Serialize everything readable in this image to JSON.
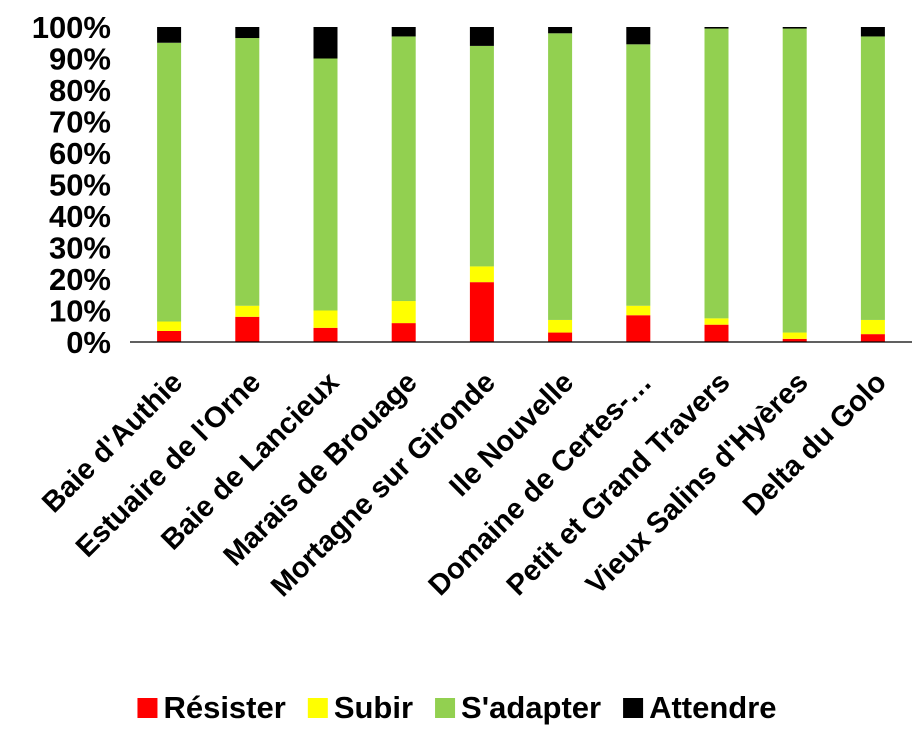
{
  "chart_data": {
    "type": "bar",
    "stacked": true,
    "percent_stacked": true,
    "title": "",
    "xlabel": "",
    "ylabel": "",
    "ylim": [
      0,
      100
    ],
    "yticks": [
      "0%",
      "10%",
      "20%",
      "30%",
      "40%",
      "50%",
      "60%",
      "70%",
      "80%",
      "90%",
      "100%"
    ],
    "grid": false,
    "legend_position": "bottom",
    "categories": [
      "Baie d'Authie",
      "Estuaire de l'Orne",
      "Baie de Lancieux",
      "Marais de Brouage",
      "Mortagne sur Gironde",
      "Ile Nouvelle",
      "Domaine de Certes-…",
      "Petit et Grand Travers",
      "Vieux Salins d'Hyères",
      "Delta du Golo"
    ],
    "series": [
      {
        "name": "Résister",
        "color": "#ff0000",
        "values": [
          3.5,
          8,
          4.5,
          6,
          19,
          3,
          8.5,
          5.5,
          1,
          2.5
        ]
      },
      {
        "name": "Subir",
        "color": "#ffff00",
        "values": [
          3,
          3.5,
          5.5,
          7,
          5,
          4,
          3,
          2,
          2,
          4.5
        ]
      },
      {
        "name": "S'adapter",
        "color": "#92d050",
        "values": [
          88.5,
          85,
          80,
          84,
          70,
          91,
          83,
          92,
          96.5,
          90
        ]
      },
      {
        "name": "Attendre",
        "color": "#000000",
        "values": [
          5,
          3.5,
          10,
          3,
          6,
          2,
          5.5,
          0.5,
          0.5,
          3
        ]
      }
    ]
  }
}
